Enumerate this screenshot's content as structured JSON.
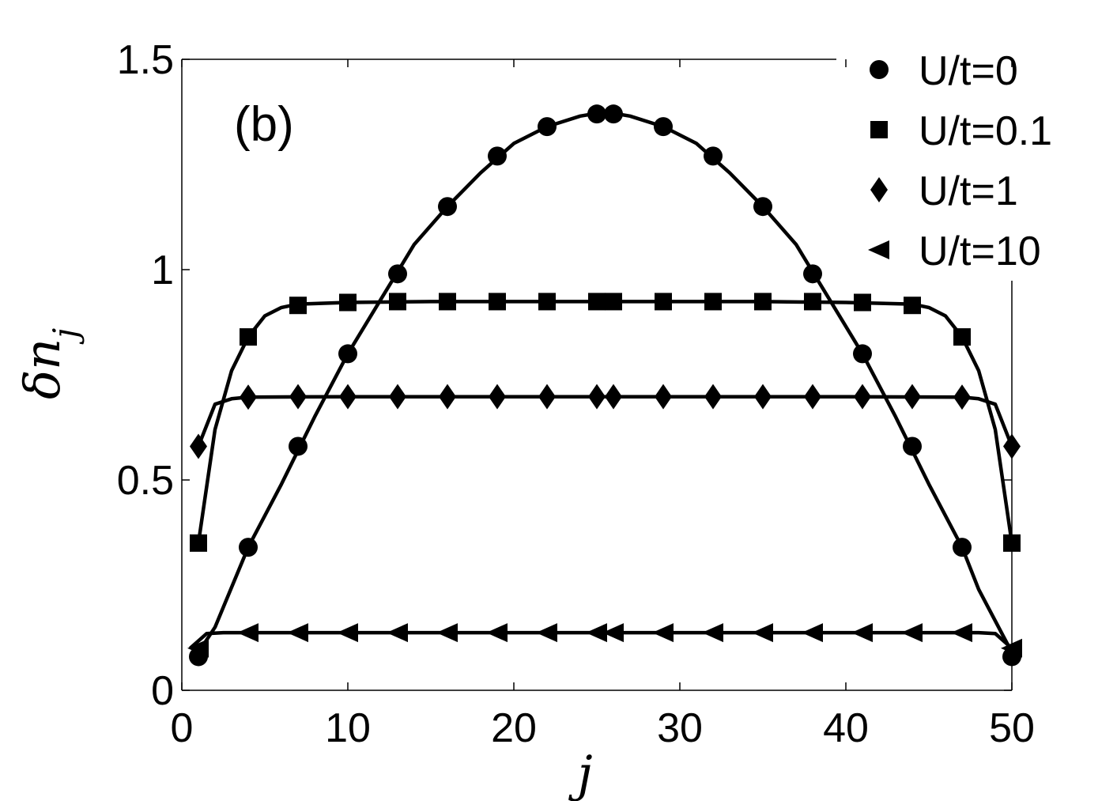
{
  "chart_data": {
    "type": "line",
    "panel_label": "(b)",
    "xlabel": "j",
    "ylabel": {
      "main": "δn",
      "subscript": "j"
    },
    "xlim": [
      0,
      50
    ],
    "ylim": [
      0,
      1.5
    ],
    "xticks": [
      0,
      10,
      20,
      30,
      40,
      50
    ],
    "yticks": [
      0,
      0.5,
      1,
      1.5
    ],
    "xtick_labels": [
      "0",
      "10",
      "20",
      "30",
      "40",
      "50"
    ],
    "ytick_labels": [
      "0",
      "0.5",
      "1",
      "1.5"
    ],
    "grid": false,
    "legend_position": "top-right",
    "color": "#000000",
    "series": [
      {
        "name": "U/t=0",
        "marker": "circle",
        "line": {
          "x": [
            1,
            2,
            4,
            6,
            8,
            10,
            12,
            14,
            16,
            18,
            20,
            22,
            24,
            25.5,
            27,
            29,
            31,
            33,
            35,
            37,
            39,
            41,
            43,
            45,
            47,
            48,
            50
          ],
          "y": [
            0.09,
            0.15,
            0.34,
            0.49,
            0.65,
            0.8,
            0.93,
            1.06,
            1.15,
            1.23,
            1.3,
            1.34,
            1.365,
            1.375,
            1.365,
            1.34,
            1.3,
            1.23,
            1.15,
            1.06,
            0.93,
            0.8,
            0.65,
            0.49,
            0.34,
            0.24,
            0.09
          ]
        },
        "markers": {
          "x": [
            1,
            4,
            7,
            10,
            13,
            16,
            19,
            22,
            25,
            26,
            29,
            32,
            35,
            38,
            41,
            44,
            47,
            50
          ],
          "y": [
            0.08,
            0.34,
            0.58,
            0.8,
            0.99,
            1.15,
            1.27,
            1.34,
            1.37,
            1.37,
            1.34,
            1.27,
            1.15,
            0.99,
            0.8,
            0.58,
            0.34,
            0.08
          ]
        }
      },
      {
        "name": "U/t=0.1",
        "marker": "square",
        "line": {
          "x": [
            1,
            2,
            3,
            4,
            5,
            6,
            7,
            10,
            15,
            20,
            25,
            30,
            35,
            40,
            44,
            45,
            46,
            47,
            48,
            49,
            50
          ],
          "y": [
            0.35,
            0.62,
            0.76,
            0.84,
            0.89,
            0.91,
            0.918,
            0.922,
            0.924,
            0.924,
            0.924,
            0.924,
            0.924,
            0.922,
            0.918,
            0.91,
            0.89,
            0.84,
            0.76,
            0.62,
            0.35
          ]
        },
        "markers": {
          "x": [
            1,
            4,
            7,
            10,
            13,
            16,
            19,
            22,
            25,
            26,
            29,
            32,
            35,
            38,
            41,
            44,
            47,
            50
          ],
          "y": [
            0.35,
            0.84,
            0.915,
            0.922,
            0.924,
            0.924,
            0.924,
            0.924,
            0.924,
            0.924,
            0.924,
            0.924,
            0.924,
            0.924,
            0.922,
            0.915,
            0.84,
            0.35
          ]
        }
      },
      {
        "name": "U/t=1",
        "marker": "diamond",
        "line": {
          "x": [
            1,
            2,
            3,
            4,
            10,
            20,
            30,
            40,
            47,
            48,
            49,
            50
          ],
          "y": [
            0.58,
            0.68,
            0.693,
            0.697,
            0.698,
            0.698,
            0.698,
            0.698,
            0.697,
            0.693,
            0.68,
            0.58
          ]
        },
        "markers": {
          "x": [
            1,
            4,
            7,
            10,
            13,
            16,
            19,
            22,
            25,
            26,
            29,
            32,
            35,
            38,
            41,
            44,
            47,
            50
          ],
          "y": [
            0.58,
            0.697,
            0.698,
            0.698,
            0.698,
            0.698,
            0.698,
            0.698,
            0.698,
            0.698,
            0.698,
            0.698,
            0.698,
            0.698,
            0.698,
            0.698,
            0.697,
            0.58
          ]
        }
      },
      {
        "name": "U/t=10",
        "marker": "triangle-left",
        "line": {
          "x": [
            0.5,
            1.5,
            2.5,
            10,
            20,
            30,
            40,
            48,
            49,
            50
          ],
          "y": [
            0.1,
            0.135,
            0.137,
            0.137,
            0.137,
            0.137,
            0.137,
            0.137,
            0.135,
            0.1
          ]
        },
        "markers": {
          "x": [
            1,
            4,
            7,
            10,
            13,
            16,
            19,
            22,
            25,
            26,
            29,
            32,
            35,
            38,
            41,
            44,
            47,
            50
          ],
          "y": [
            0.1,
            0.137,
            0.137,
            0.137,
            0.137,
            0.137,
            0.137,
            0.137,
            0.137,
            0.137,
            0.137,
            0.137,
            0.137,
            0.137,
            0.137,
            0.137,
            0.137,
            0.1
          ]
        }
      }
    ]
  }
}
